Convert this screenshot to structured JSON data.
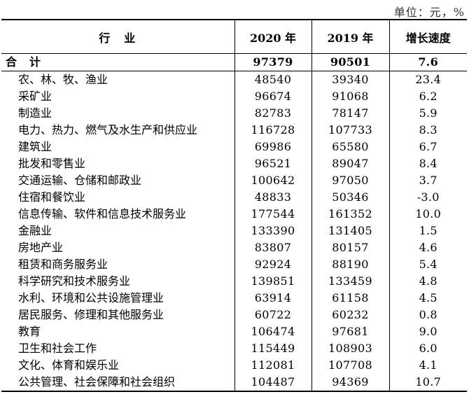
{
  "unit": "单位：元，%",
  "headers": {
    "industry": "行　业",
    "y2020": "2020 年",
    "y2019": "2019 年",
    "growth": "增长速度"
  },
  "total": {
    "name": "合　计",
    "y2020": "97379",
    "y2019": "90501",
    "growth": "7.6"
  },
  "rows": [
    {
      "name": "农、林、牧、渔业",
      "y2020": "48540",
      "y2019": "39340",
      "growth": "23.4"
    },
    {
      "name": "采矿业",
      "y2020": "96674",
      "y2019": "91068",
      "growth": "6.2"
    },
    {
      "name": "制造业",
      "y2020": "82783",
      "y2019": "78147",
      "growth": "5.9"
    },
    {
      "name": "电力、热力、燃气及水生产和供应业",
      "y2020": "116728",
      "y2019": "107733",
      "growth": "8.3"
    },
    {
      "name": "建筑业",
      "y2020": "69986",
      "y2019": "65580",
      "growth": "6.7"
    },
    {
      "name": "批发和零售业",
      "y2020": "96521",
      "y2019": "89047",
      "growth": "8.4"
    },
    {
      "name": "交通运输、仓储和邮政业",
      "y2020": "100642",
      "y2019": "97050",
      "growth": "3.7"
    },
    {
      "name": "住宿和餐饮业",
      "y2020": "48833",
      "y2019": "50346",
      "growth": "-3.0"
    },
    {
      "name": "信息传输、软件和信息技术服务业",
      "y2020": "177544",
      "y2019": "161352",
      "growth": "10.0"
    },
    {
      "name": "金融业",
      "y2020": "133390",
      "y2019": "131405",
      "growth": "1.5"
    },
    {
      "name": "房地产业",
      "y2020": "83807",
      "y2019": "80157",
      "growth": "4.6"
    },
    {
      "name": "租赁和商务服务业",
      "y2020": "92924",
      "y2019": "88190",
      "growth": "5.4"
    },
    {
      "name": "科学研究和技术服务业",
      "y2020": "139851",
      "y2019": "133459",
      "growth": "4.8"
    },
    {
      "name": "水利、环境和公共设施管理业",
      "y2020": "63914",
      "y2019": "61158",
      "growth": "4.5"
    },
    {
      "name": "居民服务、修理和其他服务业",
      "y2020": "60722",
      "y2019": "60232",
      "growth": "0.8"
    },
    {
      "name": "教育",
      "y2020": "106474",
      "y2019": "97681",
      "growth": "9.0"
    },
    {
      "name": "卫生和社会工作",
      "y2020": "115449",
      "y2019": "108903",
      "growth": "6.0"
    },
    {
      "name": "文化、体育和娱乐业",
      "y2020": "112081",
      "y2019": "107708",
      "growth": "4.1"
    },
    {
      "name": "公共管理、社会保障和社会组织",
      "y2020": "104487",
      "y2019": "94369",
      "growth": "10.7"
    }
  ]
}
